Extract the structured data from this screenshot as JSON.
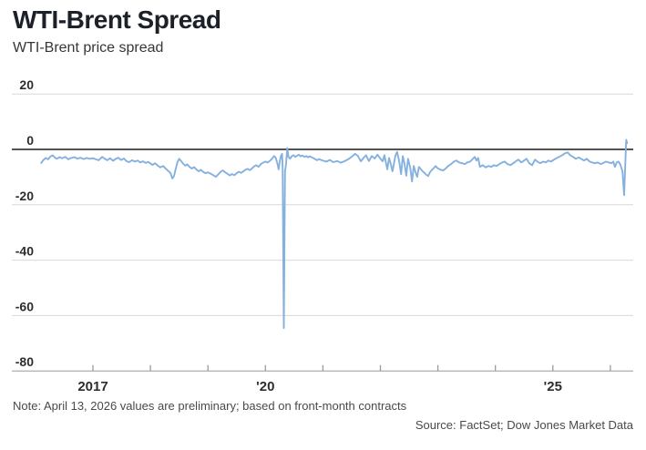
{
  "header": {
    "title": "WTI-Brent Spread",
    "subtitle": "WTI-Brent price spread"
  },
  "footer": {
    "note": "Note: April 13, 2026 values are preliminary; based on front-month contracts",
    "source": "Source: FactSet; Dow Jones Market Data"
  },
  "colors": {
    "line": "#84b1de",
    "grid": "#d8d8d8",
    "zero_line": "#1a1a1a",
    "axis": "#9a9a9a",
    "tick_text": "#2d2d2d"
  },
  "chart_data": {
    "type": "line",
    "title": "WTI-Brent Spread",
    "subtitle": "WTI-Brent price spread",
    "xlabel": "",
    "ylabel": "",
    "grid": true,
    "legend": "none",
    "ylim": [
      -80,
      20
    ],
    "xlim": [
      2016.0,
      2026.4
    ],
    "y_ticks": [
      20,
      0,
      -20,
      -40,
      -60,
      -80
    ],
    "x_ticks": [
      {
        "year": 2017,
        "label": "2017"
      },
      {
        "year": 2018,
        "label": ""
      },
      {
        "year": 2019,
        "label": ""
      },
      {
        "year": 2020,
        "label": "'20"
      },
      {
        "year": 2021,
        "label": ""
      },
      {
        "year": 2022,
        "label": ""
      },
      {
        "year": 2023,
        "label": ""
      },
      {
        "year": 2024,
        "label": ""
      },
      {
        "year": 2025,
        "label": "'25"
      },
      {
        "year": 2026,
        "label": ""
      }
    ],
    "series": [
      {
        "name": "WTI-Brent price spread",
        "points": [
          [
            2016.1,
            -4.9
          ],
          [
            2016.14,
            -3.8
          ],
          [
            2016.18,
            -3.1
          ],
          [
            2016.22,
            -3.6
          ],
          [
            2016.26,
            -2.6
          ],
          [
            2016.3,
            -2.1
          ],
          [
            2016.34,
            -3.0
          ],
          [
            2016.37,
            -3.4
          ],
          [
            2016.42,
            -2.8
          ],
          [
            2016.46,
            -3.2
          ],
          [
            2016.52,
            -2.7
          ],
          [
            2016.57,
            -3.6
          ],
          [
            2016.62,
            -3.1
          ],
          [
            2016.68,
            -2.8
          ],
          [
            2016.73,
            -3.4
          ],
          [
            2016.78,
            -3.0
          ],
          [
            2016.84,
            -3.5
          ],
          [
            2016.89,
            -3.1
          ],
          [
            2016.95,
            -3.4
          ],
          [
            2017.0,
            -3.2
          ],
          [
            2017.05,
            -3.6
          ],
          [
            2017.1,
            -3.9
          ],
          [
            2017.16,
            -2.7
          ],
          [
            2017.2,
            -3.3
          ],
          [
            2017.25,
            -3.9
          ],
          [
            2017.3,
            -3.2
          ],
          [
            2017.35,
            -4.1
          ],
          [
            2017.4,
            -3.4
          ],
          [
            2017.44,
            -3.0
          ],
          [
            2017.49,
            -3.8
          ],
          [
            2017.54,
            -3.3
          ],
          [
            2017.58,
            -4.2
          ],
          [
            2017.63,
            -4.6
          ],
          [
            2017.68,
            -3.9
          ],
          [
            2017.73,
            -4.4
          ],
          [
            2017.78,
            -4.0
          ],
          [
            2017.82,
            -4.7
          ],
          [
            2017.87,
            -4.3
          ],
          [
            2017.92,
            -4.9
          ],
          [
            2017.96,
            -4.5
          ],
          [
            2018.0,
            -5.1
          ],
          [
            2018.04,
            -5.6
          ],
          [
            2018.08,
            -5.0
          ],
          [
            2018.13,
            -5.9
          ],
          [
            2018.17,
            -6.5
          ],
          [
            2018.22,
            -6.0
          ],
          [
            2018.27,
            -7.0
          ],
          [
            2018.31,
            -7.8
          ],
          [
            2018.35,
            -8.6
          ],
          [
            2018.38,
            -10.5
          ],
          [
            2018.41,
            -9.6
          ],
          [
            2018.44,
            -7.0
          ],
          [
            2018.47,
            -4.6
          ],
          [
            2018.5,
            -3.4
          ],
          [
            2018.54,
            -4.4
          ],
          [
            2018.57,
            -5.2
          ],
          [
            2018.61,
            -5.9
          ],
          [
            2018.64,
            -5.4
          ],
          [
            2018.68,
            -6.3
          ],
          [
            2018.72,
            -6.9
          ],
          [
            2018.76,
            -6.4
          ],
          [
            2018.8,
            -7.3
          ],
          [
            2018.84,
            -7.9
          ],
          [
            2018.88,
            -7.4
          ],
          [
            2018.92,
            -8.2
          ],
          [
            2018.96,
            -8.6
          ],
          [
            2019.0,
            -8.3
          ],
          [
            2019.06,
            -8.9
          ],
          [
            2019.1,
            -9.4
          ],
          [
            2019.14,
            -9.9
          ],
          [
            2019.18,
            -9.0
          ],
          [
            2019.22,
            -8.1
          ],
          [
            2019.26,
            -7.6
          ],
          [
            2019.3,
            -8.3
          ],
          [
            2019.34,
            -8.8
          ],
          [
            2019.38,
            -9.4
          ],
          [
            2019.42,
            -8.9
          ],
          [
            2019.46,
            -9.3
          ],
          [
            2019.5,
            -8.6
          ],
          [
            2019.54,
            -8.1
          ],
          [
            2019.58,
            -8.5
          ],
          [
            2019.61,
            -8.0
          ],
          [
            2019.65,
            -7.4
          ],
          [
            2019.69,
            -7.0
          ],
          [
            2019.73,
            -7.5
          ],
          [
            2019.77,
            -6.8
          ],
          [
            2019.8,
            -6.2
          ],
          [
            2019.84,
            -5.7
          ],
          [
            2019.88,
            -6.3
          ],
          [
            2019.92,
            -5.3
          ],
          [
            2019.96,
            -4.8
          ],
          [
            2020.0,
            -4.4
          ],
          [
            2020.04,
            -4.7
          ],
          [
            2020.08,
            -4.1
          ],
          [
            2020.11,
            -3.5
          ],
          [
            2020.15,
            -2.4
          ],
          [
            2020.18,
            -3.1
          ],
          [
            2020.21,
            -5.3
          ],
          [
            2020.23,
            -7.2
          ],
          [
            2020.25,
            -4.3
          ],
          [
            2020.27,
            -2.4
          ],
          [
            2020.29,
            -1.6
          ],
          [
            2020.3,
            -6.5
          ],
          [
            2020.32,
            -64.5
          ],
          [
            2020.34,
            -8.0
          ],
          [
            2020.36,
            -5.2
          ],
          [
            2020.38,
            0.5
          ],
          [
            2020.4,
            -2.6
          ],
          [
            2020.43,
            -3.4
          ],
          [
            2020.46,
            -2.4
          ],
          [
            2020.49,
            -2.1
          ],
          [
            2020.52,
            -2.7
          ],
          [
            2020.55,
            -2.3
          ],
          [
            2020.58,
            -1.9
          ],
          [
            2020.61,
            -2.5
          ],
          [
            2020.64,
            -2.2
          ],
          [
            2020.68,
            -2.7
          ],
          [
            2020.71,
            -2.4
          ],
          [
            2020.74,
            -2.9
          ],
          [
            2020.77,
            -2.5
          ],
          [
            2020.8,
            -2.8
          ],
          [
            2020.84,
            -3.2
          ],
          [
            2020.87,
            -3.6
          ],
          [
            2020.9,
            -3.9
          ],
          [
            2020.93,
            -3.5
          ],
          [
            2020.97,
            -3.8
          ],
          [
            2021.01,
            -4.1
          ],
          [
            2021.06,
            -4.4
          ],
          [
            2021.12,
            -3.8
          ],
          [
            2021.18,
            -4.6
          ],
          [
            2021.25,
            -4.2
          ],
          [
            2021.31,
            -4.8
          ],
          [
            2021.37,
            -4.3
          ],
          [
            2021.44,
            -3.6
          ],
          [
            2021.5,
            -2.7
          ],
          [
            2021.56,
            -1.6
          ],
          [
            2021.61,
            -2.4
          ],
          [
            2021.66,
            -4.3
          ],
          [
            2021.71,
            -3.0
          ],
          [
            2021.75,
            -2.1
          ],
          [
            2021.8,
            -4.2
          ],
          [
            2021.85,
            -2.4
          ],
          [
            2021.9,
            -3.3
          ],
          [
            2021.95,
            -1.9
          ],
          [
            2021.99,
            -3.1
          ],
          [
            2022.04,
            -4.3
          ],
          [
            2022.07,
            -2.1
          ],
          [
            2022.12,
            -7.2
          ],
          [
            2022.15,
            -3.1
          ],
          [
            2022.18,
            -5.3
          ],
          [
            2022.21,
            -7.9
          ],
          [
            2022.26,
            -2.4
          ],
          [
            2022.29,
            -0.9
          ],
          [
            2022.33,
            -4.6
          ],
          [
            2022.36,
            -8.9
          ],
          [
            2022.39,
            -2.4
          ],
          [
            2022.42,
            -5.3
          ],
          [
            2022.45,
            -9.5
          ],
          [
            2022.48,
            -3.4
          ],
          [
            2022.52,
            -6.7
          ],
          [
            2022.55,
            -11.6
          ],
          [
            2022.58,
            -6.0
          ],
          [
            2022.61,
            -8.3
          ],
          [
            2022.64,
            -9.9
          ],
          [
            2022.67,
            -6.3
          ],
          [
            2022.71,
            -7.3
          ],
          [
            2022.74,
            -8.0
          ],
          [
            2022.77,
            -8.6
          ],
          [
            2022.8,
            -9.2
          ],
          [
            2022.83,
            -9.6
          ],
          [
            2022.86,
            -8.3
          ],
          [
            2022.9,
            -7.3
          ],
          [
            2022.93,
            -6.7
          ],
          [
            2022.96,
            -6.0
          ],
          [
            2022.99,
            -6.7
          ],
          [
            2023.04,
            -7.3
          ],
          [
            2023.09,
            -7.6
          ],
          [
            2023.13,
            -7.0
          ],
          [
            2023.18,
            -6.0
          ],
          [
            2023.23,
            -5.3
          ],
          [
            2023.28,
            -4.4
          ],
          [
            2023.32,
            -4.0
          ],
          [
            2023.37,
            -4.7
          ],
          [
            2023.42,
            -5.0
          ],
          [
            2023.47,
            -5.3
          ],
          [
            2023.51,
            -4.7
          ],
          [
            2023.56,
            -4.4
          ],
          [
            2023.61,
            -3.4
          ],
          [
            2023.64,
            -2.7
          ],
          [
            2023.67,
            -4.0
          ],
          [
            2023.7,
            -3.1
          ],
          [
            2023.73,
            -6.3
          ],
          [
            2023.78,
            -5.7
          ],
          [
            2023.83,
            -6.5
          ],
          [
            2023.88,
            -6.0
          ],
          [
            2023.93,
            -6.3
          ],
          [
            2023.97,
            -5.7
          ],
          [
            2024.02,
            -6.0
          ],
          [
            2024.07,
            -5.3
          ],
          [
            2024.12,
            -4.7
          ],
          [
            2024.16,
            -4.4
          ],
          [
            2024.21,
            -5.3
          ],
          [
            2024.26,
            -5.7
          ],
          [
            2024.31,
            -5.0
          ],
          [
            2024.35,
            -4.4
          ],
          [
            2024.4,
            -3.7
          ],
          [
            2024.45,
            -4.7
          ],
          [
            2024.5,
            -4.0
          ],
          [
            2024.54,
            -3.4
          ],
          [
            2024.59,
            -5.0
          ],
          [
            2024.64,
            -5.7
          ],
          [
            2024.69,
            -3.7
          ],
          [
            2024.73,
            -4.4
          ],
          [
            2024.78,
            -5.0
          ],
          [
            2024.83,
            -4.4
          ],
          [
            2024.88,
            -4.7
          ],
          [
            2024.92,
            -4.0
          ],
          [
            2024.97,
            -4.4
          ],
          [
            2025.02,
            -3.7
          ],
          [
            2025.07,
            -3.1
          ],
          [
            2025.11,
            -2.7
          ],
          [
            2025.16,
            -2.1
          ],
          [
            2025.21,
            -1.4
          ],
          [
            2025.26,
            -1.1
          ],
          [
            2025.3,
            -2.1
          ],
          [
            2025.35,
            -2.7
          ],
          [
            2025.4,
            -3.4
          ],
          [
            2025.45,
            -2.9
          ],
          [
            2025.49,
            -3.4
          ],
          [
            2025.54,
            -4.0
          ],
          [
            2025.59,
            -3.4
          ],
          [
            2025.64,
            -4.4
          ],
          [
            2025.68,
            -4.7
          ],
          [
            2025.73,
            -5.0
          ],
          [
            2025.78,
            -4.7
          ],
          [
            2025.83,
            -5.3
          ],
          [
            2025.87,
            -5.0
          ],
          [
            2025.92,
            -4.4
          ],
          [
            2025.97,
            -4.7
          ],
          [
            2026.02,
            -5.0
          ],
          [
            2026.05,
            -4.4
          ],
          [
            2026.08,
            -6.3
          ],
          [
            2026.11,
            -4.7
          ],
          [
            2026.14,
            -4.4
          ],
          [
            2026.17,
            -5.3
          ],
          [
            2026.21,
            -7.9
          ],
          [
            2026.24,
            -16.5
          ],
          [
            2026.26,
            -4.9
          ],
          [
            2026.275,
            3.5
          ],
          [
            2026.29,
            2.2
          ]
        ]
      }
    ]
  }
}
